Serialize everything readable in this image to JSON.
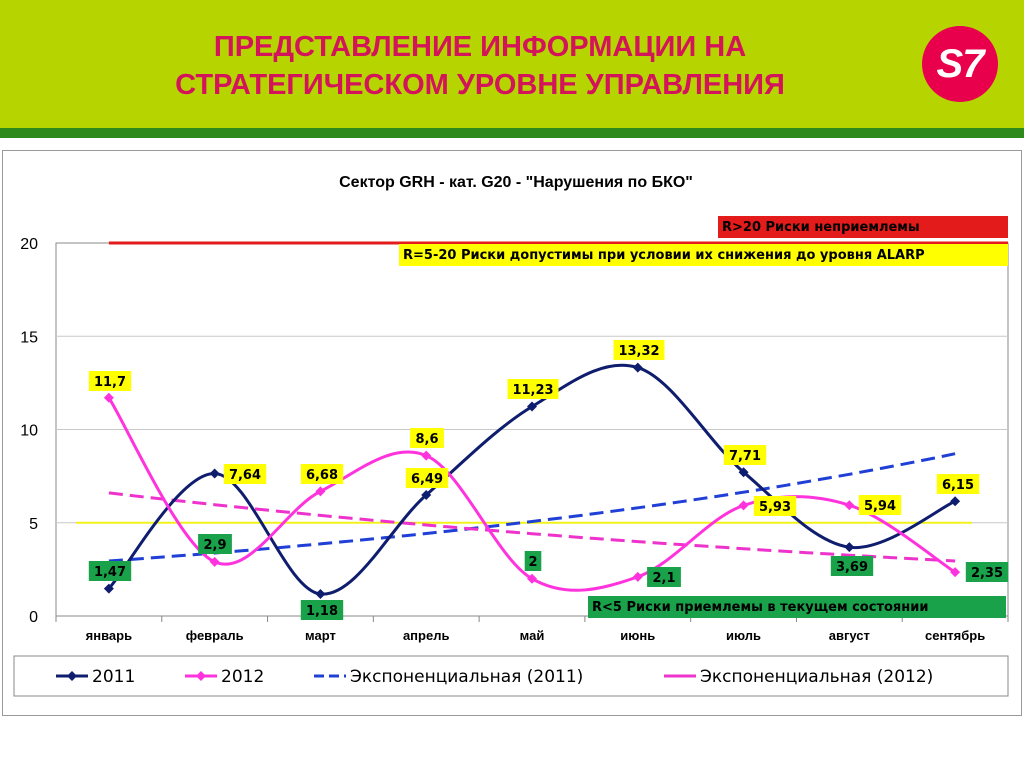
{
  "slide": {
    "title_line1": "ПРЕДСТАВЛЕНИЕ ИНФОРМАЦИИ НА",
    "title_line2": "СТРАТЕГИЧЕСКОМ УРОВНЕ УПРАВЛЕНИЯ",
    "logo_text": "S7",
    "colors": {
      "header": "#b6d400",
      "stripe": "#2f8a1c",
      "title": "#d4145a",
      "logo": "#e8004d"
    }
  },
  "chart_data": {
    "type": "line",
    "title": "Сектор GRH - кат. G20 - \"Нарушения по БКО\"",
    "categories": [
      "январь",
      "февраль",
      "март",
      "апрель",
      "май",
      "июнь",
      "июль",
      "август",
      "сентябрь"
    ],
    "ylim": [
      0,
      20
    ],
    "yticks": [
      "0",
      "5",
      "10",
      "15",
      "20"
    ],
    "grid": true,
    "legend_position": "bottom",
    "series": [
      {
        "name": "2011",
        "color": "#0f1d6e",
        "values": [
          1.47,
          7.64,
          1.18,
          6.49,
          11.23,
          13.32,
          7.71,
          3.69,
          6.15
        ],
        "labels": [
          "1,47",
          "7,64",
          "1,18",
          "6,49",
          "11,23",
          "13,32",
          "7,71",
          "3,69",
          "6,15"
        ],
        "label_bg": [
          "green",
          "yellow",
          "green",
          "yellow",
          "yellow",
          "yellow",
          "yellow",
          "green",
          "yellow"
        ]
      },
      {
        "name": "2012",
        "color": "#ff33dd",
        "values": [
          11.7,
          2.9,
          6.68,
          8.6,
          2.0,
          2.1,
          5.93,
          5.94,
          2.35
        ],
        "labels": [
          "11,7",
          "2,9",
          "6,68",
          "8,6",
          "2",
          "2,1",
          "5,93",
          "5,94",
          "2,35"
        ],
        "label_bg": [
          "yellow",
          "green",
          "yellow",
          "yellow",
          "green",
          "green",
          "yellow",
          "yellow",
          "green"
        ]
      }
    ],
    "trendlines": [
      {
        "name": "Экспоненциальная (2011)",
        "color": "#1f3fd6",
        "start": 2.95,
        "end": 8.7
      },
      {
        "name": "Экспоненциальная (2012)",
        "color": "#ee33cc",
        "start": 6.6,
        "end": 2.95
      }
    ],
    "thresholds": [
      {
        "value": 20,
        "color": "#e31b1b"
      },
      {
        "value": 5,
        "color": "#f2f21a"
      }
    ],
    "zones": [
      {
        "text": "R>20  Риски неприемлемы",
        "bg": "#e31b1b"
      },
      {
        "text": "R=5-20 Риски допустимы при условии их снижения до уровня ALARP",
        "bg": "#ffff00"
      },
      {
        "text": "R<5 Риски приемлемы в текущем состоянии",
        "bg": "#1aa24a"
      }
    ],
    "label_colors": {
      "yellow": "#ffff00",
      "green": "#1aa24a"
    }
  }
}
